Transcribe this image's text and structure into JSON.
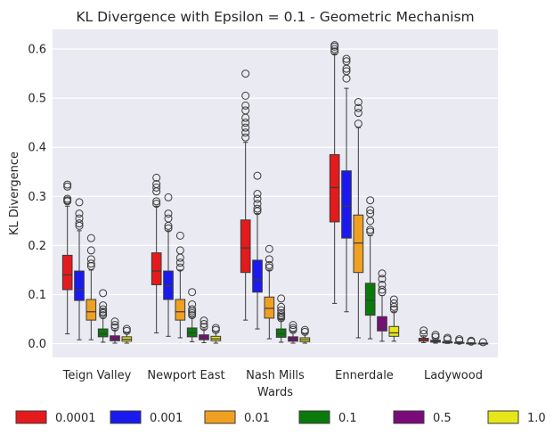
{
  "chart_data": {
    "type": "box",
    "title": "KL Divergence with Epsilon = 0.1 - Geometric Mechanism",
    "xlabel": "Wards",
    "ylabel": "KL Divergence",
    "ylim": [
      -0.028,
      0.64
    ],
    "yticks": [
      0.0,
      0.1,
      0.2,
      0.3,
      0.4,
      0.5,
      0.6
    ],
    "ytick_labels": [
      "0.0",
      "0.1",
      "0.2",
      "0.3",
      "0.4",
      "0.5",
      "0.6"
    ],
    "grid": true,
    "legend_position": "bottom",
    "categories": [
      "Teign Valley",
      "Newport East",
      "Nash Mills",
      "Ennerdale",
      "Ladywood"
    ],
    "series": [
      {
        "name": "0.0001",
        "color": "#e41a1c",
        "boxes": [
          {
            "whislo": 0.02,
            "q1": 0.11,
            "med": 0.14,
            "q3": 0.18,
            "whishi": 0.28,
            "fliers": [
              0.29,
              0.292,
              0.295,
              0.32,
              0.324
            ]
          },
          {
            "whislo": 0.022,
            "q1": 0.12,
            "med": 0.148,
            "q3": 0.185,
            "whishi": 0.28,
            "fliers": [
              0.285,
              0.29,
              0.31,
              0.318,
              0.325,
              0.338
            ]
          },
          {
            "whislo": 0.048,
            "q1": 0.145,
            "med": 0.195,
            "q3": 0.252,
            "whishi": 0.41,
            "fliers": [
              0.42,
              0.43,
              0.44,
              0.45,
              0.46,
              0.475,
              0.485,
              0.505,
              0.55
            ]
          },
          {
            "whislo": 0.082,
            "q1": 0.248,
            "med": 0.318,
            "q3": 0.385,
            "whishi": 0.59,
            "fliers": [
              0.595,
              0.6,
              0.605,
              0.608
            ]
          },
          {
            "whislo": 0.002,
            "q1": 0.005,
            "med": 0.008,
            "q3": 0.011,
            "whishi": 0.016,
            "fliers": [
              0.02,
              0.027
            ]
          }
        ]
      },
      {
        "name": "0.001",
        "color": "#1a1aee",
        "boxes": [
          {
            "whislo": 0.008,
            "q1": 0.088,
            "med": 0.11,
            "q3": 0.148,
            "whishi": 0.23,
            "fliers": [
              0.24,
              0.245,
              0.255,
              0.265,
              0.288
            ]
          },
          {
            "whislo": 0.015,
            "q1": 0.09,
            "med": 0.118,
            "q3": 0.148,
            "whishi": 0.23,
            "fliers": [
              0.235,
              0.24,
              0.255,
              0.265,
              0.298
            ]
          },
          {
            "whislo": 0.03,
            "q1": 0.105,
            "med": 0.13,
            "q3": 0.17,
            "whishi": 0.265,
            "fliers": [
              0.27,
              0.275,
              0.285,
              0.295,
              0.305,
              0.342
            ]
          },
          {
            "whislo": 0.065,
            "q1": 0.215,
            "med": 0.28,
            "q3": 0.352,
            "whishi": 0.52,
            "fliers": [
              0.54,
              0.555,
              0.56,
              0.575,
              0.58
            ]
          },
          {
            "whislo": 0.001,
            "q1": 0.003,
            "med": 0.005,
            "q3": 0.007,
            "whishi": 0.01,
            "fliers": [
              0.014,
              0.018
            ]
          }
        ]
      },
      {
        "name": "0.01",
        "color": "#f0a020",
        "boxes": [
          {
            "whislo": 0.008,
            "q1": 0.048,
            "med": 0.065,
            "q3": 0.09,
            "whishi": 0.15,
            "fliers": [
              0.158,
              0.163,
              0.172,
              0.19,
              0.215
            ]
          },
          {
            "whislo": 0.012,
            "q1": 0.048,
            "med": 0.065,
            "q3": 0.09,
            "whishi": 0.15,
            "fliers": [
              0.155,
              0.165,
              0.175,
              0.19,
              0.22
            ]
          },
          {
            "whislo": 0.01,
            "q1": 0.052,
            "med": 0.072,
            "q3": 0.095,
            "whishi": 0.15,
            "fliers": [
              0.155,
              0.16,
              0.172,
              0.193
            ]
          },
          {
            "whislo": 0.012,
            "q1": 0.145,
            "med": 0.205,
            "q3": 0.262,
            "whishi": 0.44,
            "fliers": [
              0.448,
              0.47,
              0.48,
              0.492
            ]
          },
          {
            "whislo": 0.0005,
            "q1": 0.0015,
            "med": 0.0025,
            "q3": 0.004,
            "whishi": 0.006,
            "fliers": [
              0.009,
              0.012
            ]
          }
        ]
      },
      {
        "name": "0.1",
        "color": "#0b7a0b",
        "boxes": [
          {
            "whislo": 0.003,
            "q1": 0.014,
            "med": 0.02,
            "q3": 0.03,
            "whishi": 0.052,
            "fliers": [
              0.058,
              0.062,
              0.065,
              0.07,
              0.078,
              0.103
            ]
          },
          {
            "whislo": 0.004,
            "q1": 0.014,
            "med": 0.022,
            "q3": 0.032,
            "whishi": 0.054,
            "fliers": [
              0.058,
              0.062,
              0.066,
              0.07,
              0.08,
              0.105
            ]
          },
          {
            "whislo": 0.003,
            "q1": 0.013,
            "med": 0.02,
            "q3": 0.03,
            "whishi": 0.05,
            "fliers": [
              0.052,
              0.055,
              0.058,
              0.062,
              0.068,
              0.075,
              0.092
            ]
          },
          {
            "whislo": 0.01,
            "q1": 0.058,
            "med": 0.088,
            "q3": 0.123,
            "whishi": 0.22,
            "fliers": [
              0.228,
              0.232,
              0.25,
              0.265,
              0.272,
              0.292
            ]
          },
          {
            "whislo": 0.0002,
            "q1": 0.0008,
            "med": 0.0015,
            "q3": 0.0025,
            "whishi": 0.004,
            "fliers": [
              0.006,
              0.009
            ]
          }
        ]
      },
      {
        "name": "0.5",
        "color": "#7a0c7a",
        "boxes": [
          {
            "whislo": 0.001,
            "q1": 0.006,
            "med": 0.01,
            "q3": 0.016,
            "whishi": 0.028,
            "fliers": [
              0.033,
              0.038,
              0.045
            ]
          },
          {
            "whislo": 0.002,
            "q1": 0.008,
            "med": 0.012,
            "q3": 0.018,
            "whishi": 0.03,
            "fliers": [
              0.034,
              0.04,
              0.047
            ]
          },
          {
            "whislo": 0.001,
            "q1": 0.005,
            "med": 0.009,
            "q3": 0.014,
            "whishi": 0.024,
            "fliers": [
              0.028,
              0.032,
              0.038
            ]
          },
          {
            "whislo": 0.005,
            "q1": 0.026,
            "med": 0.036,
            "q3": 0.055,
            "whishi": 0.098,
            "fliers": [
              0.105,
              0.11,
              0.12,
              0.132,
              0.143
            ]
          },
          {
            "whislo": 0.0001,
            "q1": 0.0004,
            "med": 0.0008,
            "q3": 0.0013,
            "whishi": 0.002,
            "fliers": [
              0.004,
              0.006
            ]
          }
        ]
      },
      {
        "name": "1.0",
        "color": "#e6e619",
        "boxes": [
          {
            "whislo": 0.001,
            "q1": 0.005,
            "med": 0.009,
            "q3": 0.014,
            "whishi": 0.022,
            "fliers": [
              0.026,
              0.03
            ]
          },
          {
            "whislo": 0.001,
            "q1": 0.006,
            "med": 0.01,
            "q3": 0.015,
            "whishi": 0.025,
            "fliers": [
              0.028,
              0.032
            ]
          },
          {
            "whislo": 0.001,
            "q1": 0.004,
            "med": 0.008,
            "q3": 0.012,
            "whishi": 0.02,
            "fliers": [
              0.024,
              0.028
            ]
          },
          {
            "whislo": 0.005,
            "q1": 0.015,
            "med": 0.022,
            "q3": 0.035,
            "whishi": 0.065,
            "fliers": [
              0.07,
              0.075,
              0.082,
              0.09
            ]
          },
          {
            "whislo": 0.0001,
            "q1": 0.0003,
            "med": 0.0006,
            "q3": 0.001,
            "whishi": 0.0015,
            "fliers": [
              0.003
            ]
          }
        ]
      }
    ]
  }
}
